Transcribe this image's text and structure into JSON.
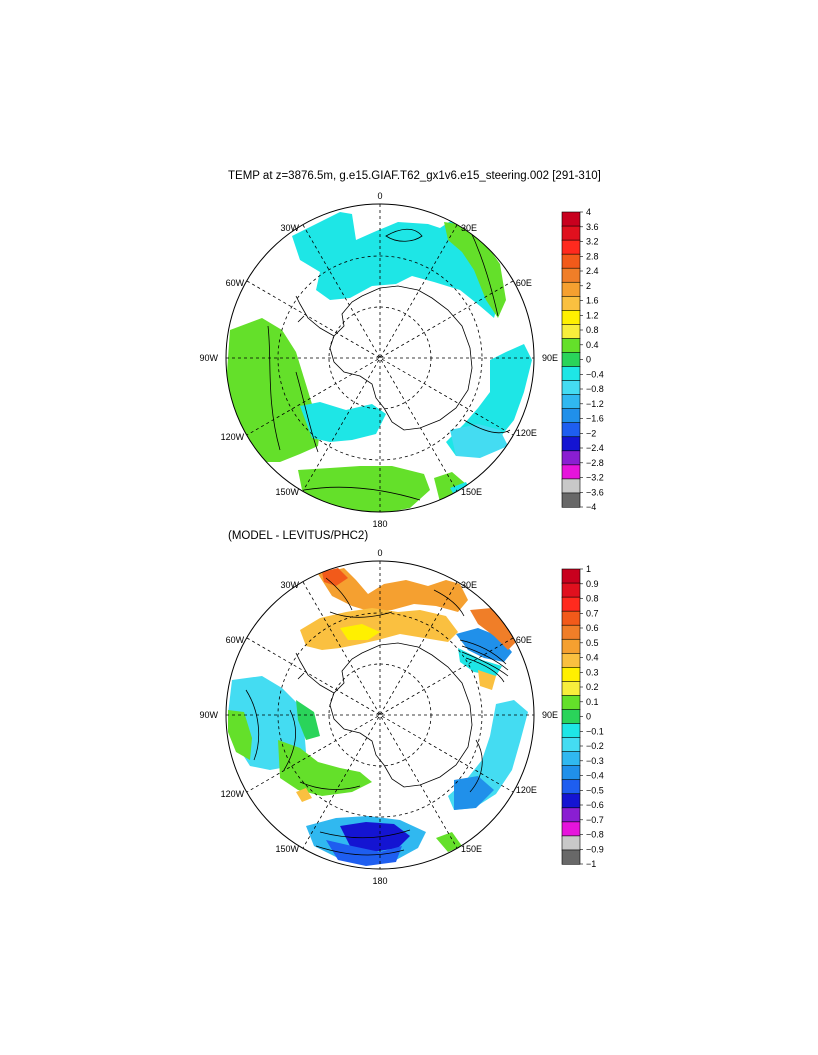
{
  "panels": [
    {
      "title": "TEMP at z=3876.5m, g.e15.GIAF.T62_gx1v6.e15_steering.002 [291-310]",
      "meridian_labels": [
        "0",
        "30E",
        "60E",
        "90E",
        "120E",
        "150E",
        "180",
        "150W",
        "120W",
        "90W",
        "60W",
        "30W"
      ],
      "colorbar_labels": [
        "4",
        "3.6",
        "3.2",
        "2.8",
        "2.4",
        "2",
        "1.6",
        "1.2",
        "0.8",
        "0.4",
        "0",
        "−0.4",
        "−0.8",
        "−1.2",
        "−1.6",
        "−2",
        "−2.4",
        "−2.8",
        "−3.2",
        "−3.6",
        "−4"
      ]
    },
    {
      "title": "(MODEL - LEVITUS/PHC2)",
      "meridian_labels": [
        "0",
        "30E",
        "60E",
        "90E",
        "120E",
        "150E",
        "180",
        "150W",
        "120W",
        "90W",
        "60W",
        "30W"
      ],
      "colorbar_labels": [
        "1",
        "0.9",
        "0.8",
        "0.7",
        "0.6",
        "0.5",
        "0.4",
        "0.3",
        "0.2",
        "0.1",
        "0",
        "−0.1",
        "−0.2",
        "−0.3",
        "−0.4",
        "−0.5",
        "−0.6",
        "−0.7",
        "−0.8",
        "−0.9",
        "−1"
      ]
    }
  ],
  "colors": {
    "palette": [
      "#c8001e",
      "#e0101e",
      "#ff2a1e",
      "#f25a1a",
      "#f07e28",
      "#f5a030",
      "#fac040",
      "#fff000",
      "#f7ee3c",
      "#64e02a",
      "#2ad45a",
      "#1ee6e6",
      "#44dcf2",
      "#30b8f0",
      "#2090ea",
      "#1e5ef0",
      "#1414d2",
      "#8a1ed2",
      "#e614dc",
      "#c8c8c8",
      "#686868"
    ],
    "land": "#ffffff",
    "coast": "#000000"
  }
}
